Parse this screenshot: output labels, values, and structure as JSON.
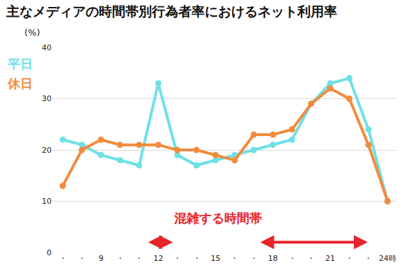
{
  "chart_data": {
    "type": "line",
    "title": "主なメディアの時間帯別行為者率におけるネット利用率",
    "y_label": "(%)",
    "annotation": "混雑する時間帯",
    "categories": [
      "・",
      "・",
      "9",
      "・",
      "・",
      "12",
      "・",
      "・",
      "15",
      "・",
      "・",
      "18",
      "・",
      "・",
      "21",
      "・",
      "・",
      "24時"
    ],
    "series": [
      {
        "name": "平日",
        "color": "#6ee0e6",
        "marker": "circle",
        "values": [
          22,
          21,
          19,
          18,
          17,
          33,
          19,
          17,
          18,
          19,
          20,
          21,
          22,
          29,
          33,
          34,
          24,
          10
        ]
      },
      {
        "name": "休日",
        "color": "#f28b3d",
        "marker": "circle",
        "values": [
          13,
          20,
          22,
          21,
          21,
          21,
          20,
          20,
          19,
          18,
          23,
          23,
          24,
          29,
          32,
          30,
          21,
          10
        ]
      }
    ],
    "ylim": [
      0,
      40
    ],
    "yticks": [
      0,
      10,
      20,
      30,
      40
    ],
    "grid": true
  }
}
